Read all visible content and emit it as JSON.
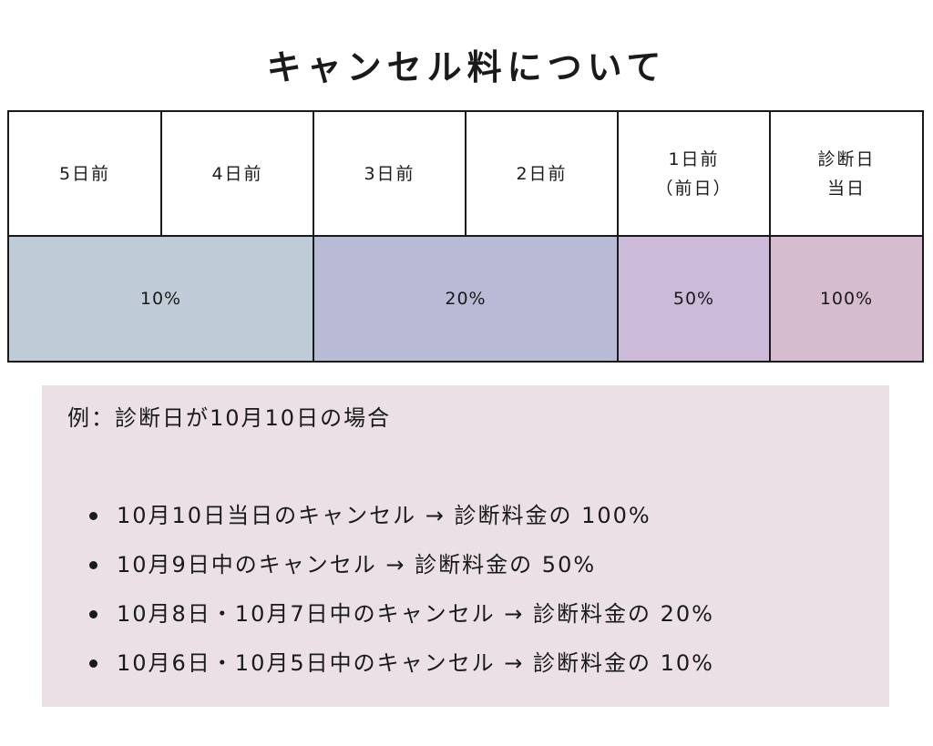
{
  "title": "キャンセル料について",
  "table": {
    "headers": [
      {
        "line1": "5日前",
        "line2": ""
      },
      {
        "line1": "4日前",
        "line2": ""
      },
      {
        "line1": "3日前",
        "line2": ""
      },
      {
        "line1": "2日前",
        "line2": ""
      },
      {
        "line1": "1日前",
        "line2": "（前日）"
      },
      {
        "line1": "診断日",
        "line2": "当日"
      }
    ],
    "rates": [
      {
        "label": "10%",
        "color": "#bfccd8"
      },
      {
        "label": "20%",
        "color": "#b9bbd6"
      },
      {
        "label": "50%",
        "color": "#ccbad9"
      },
      {
        "label": "100%",
        "color": "#d6bccf"
      }
    ]
  },
  "example": {
    "heading": "例：診断日が10月10日の場合",
    "background": "#eae0e6",
    "items": [
      "10月10日当日のキャンセル → 診断料金の 100%",
      "10月9日中のキャンセル → 診断料金の 50%",
      "10月8日・10月7日中のキャンセル → 診断料金の 20%",
      "10月6日・10月5日中のキャンセル → 診断料金の 10%"
    ]
  }
}
